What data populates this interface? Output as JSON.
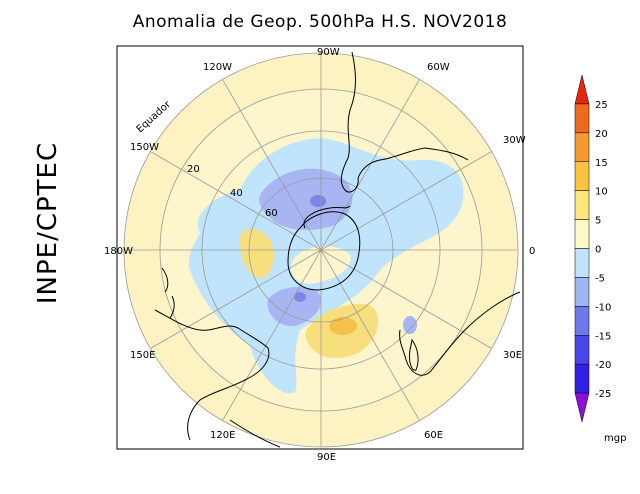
{
  "title": "Anomalia de Geop. 500hPa H.S. NOV2018",
  "side_label": "INPE/CPTEC",
  "map": {
    "projection": "polar stereographic (south pole)",
    "longitude_labels": [
      "90W",
      "120W",
      "60W",
      "150W",
      "30W",
      "180W",
      "0",
      "150E",
      "30E",
      "120E",
      "60E",
      "90E"
    ],
    "latitude_labels": [
      "20",
      "40",
      "60"
    ],
    "equator_label": "Equador",
    "colors": {
      "ocean_bg": "#fdf4c8",
      "light_yellow": "#fcf0b4",
      "yellow": "#f8df7e",
      "orange": "#f2c24a",
      "light_blue": "#c0e4fb",
      "blue": "#a7b6f3",
      "dark_blue": "#7d86e8"
    }
  },
  "colorbar": {
    "levels": [
      "25",
      "20",
      "15",
      "10",
      "5",
      "0",
      "-5",
      "-10",
      "-15",
      "-20",
      "-25"
    ],
    "colors": [
      "#e8250e",
      "#f06a1e",
      "#f69a30",
      "#f8c442",
      "#fbe77a",
      "#fff8c8",
      "#c0e4fb",
      "#9fb6f4",
      "#6f79ec",
      "#4a46ea",
      "#3320e8",
      "#8a10d6"
    ],
    "unit": "mgp"
  }
}
